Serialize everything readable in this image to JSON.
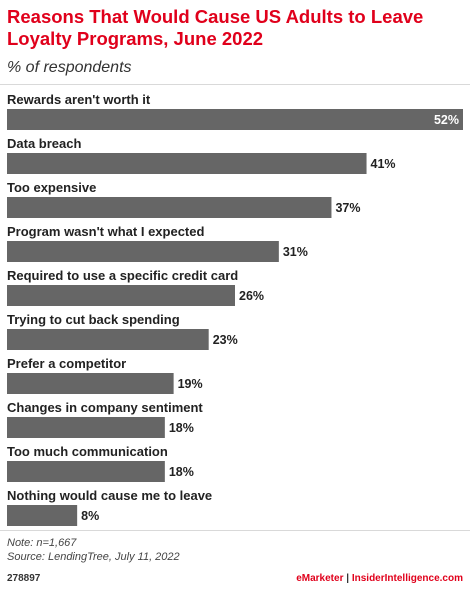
{
  "header": {
    "title": "Reasons That Would Cause US Adults to Leave Loyalty Programs, June 2022",
    "subtitle": "% of respondents"
  },
  "footer": {
    "note": "Note: n=1,667",
    "source": "Source: LendingTree, July 11, 2022",
    "chart_id": "278897",
    "brand_left": "eMarketer",
    "brand_sep": "|",
    "brand_right": "InsiderIntelligence.com"
  },
  "colors": {
    "bar": "#666666",
    "accent": "#e0001b",
    "bar_label_inside": "#ffffff"
  },
  "chart_data": {
    "type": "bar",
    "orientation": "horizontal",
    "categories": [
      "Rewards aren't worth it",
      "Data breach",
      "Too expensive",
      "Program wasn't what I expected",
      "Required to use a specific credit card",
      "Trying to cut back spending",
      "Prefer a competitor",
      "Changes in company sentiment",
      "Too much communication",
      "Nothing would cause me to leave"
    ],
    "values": [
      52,
      41,
      37,
      31,
      26,
      23,
      19,
      18,
      18,
      8
    ],
    "value_labels": [
      "52%",
      "41%",
      "37%",
      "31%",
      "26%",
      "23%",
      "19%",
      "18%",
      "18%",
      "8%"
    ],
    "xlim": [
      0,
      52
    ],
    "grid": false,
    "legend": "none"
  }
}
